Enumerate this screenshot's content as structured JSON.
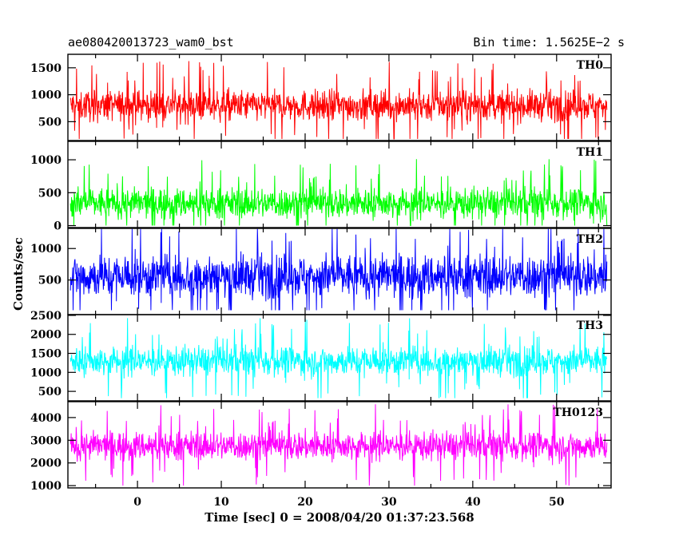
{
  "header": {
    "title": "ae080420013723_wam0_bst",
    "bin_time": "Bin time: 1.5625E−2 s"
  },
  "chart_data": {
    "type": "line",
    "ylabel": "Counts/sec",
    "xlabel": "Time [sec] 0 = 2008/04/20 01:37:23.568",
    "xlim": [
      -8.3,
      56.5
    ],
    "x_data_range": [
      -8,
      56
    ],
    "x_ticks": [
      0,
      10,
      20,
      30,
      40,
      50
    ],
    "panels": [
      {
        "name": "TH0",
        "color": "#ff0000",
        "ylim": [
          150,
          1750
        ],
        "ticks": [
          500,
          1000,
          1500
        ],
        "mean": 800,
        "spread": 230,
        "clip_min": 180,
        "clip_max": 1700
      },
      {
        "name": "TH1",
        "color": "#00ff00",
        "ylim": [
          -30,
          1280
        ],
        "ticks": [
          0,
          500,
          1000
        ],
        "mean": 340,
        "spread": 190,
        "clip_min": 0,
        "clip_max": 1230
      },
      {
        "name": "TH2",
        "color": "#0000ff",
        "ylim": [
          -50,
          1320
        ],
        "ticks": [
          500,
          1000
        ],
        "mean": 560,
        "spread": 280,
        "clip_min": 20,
        "clip_max": 1310
      },
      {
        "name": "TH3",
        "color": "#00ffff",
        "ylim": [
          250,
          2520
        ],
        "ticks": [
          500,
          1000,
          1500,
          2000,
          2500
        ],
        "mean": 1300,
        "spread": 320,
        "clip_min": 320,
        "clip_max": 2450
      },
      {
        "name": "TH0123",
        "color": "#ff00ff",
        "ylim": [
          900,
          4700
        ],
        "ticks": [
          1000,
          2000,
          3000,
          4000
        ],
        "mean": 2750,
        "spread": 520,
        "clip_min": 1000,
        "clip_max": 4600
      }
    ]
  }
}
